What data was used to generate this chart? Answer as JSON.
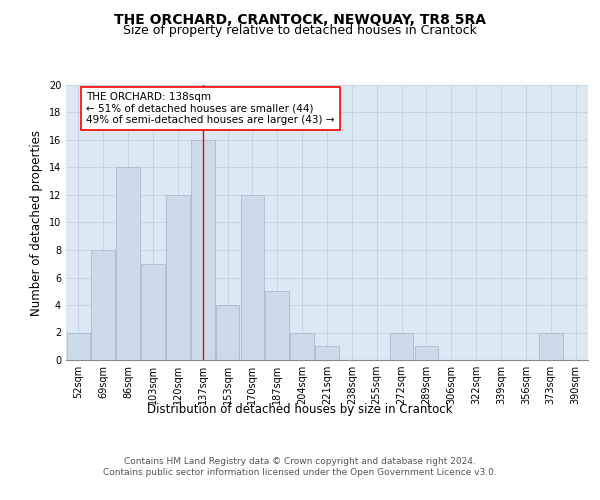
{
  "title": "THE ORCHARD, CRANTOCK, NEWQUAY, TR8 5RA",
  "subtitle": "Size of property relative to detached houses in Crantock",
  "xlabel": "Distribution of detached houses by size in Crantock",
  "ylabel": "Number of detached properties",
  "categories": [
    "52sqm",
    "69sqm",
    "86sqm",
    "103sqm",
    "120sqm",
    "137sqm",
    "153sqm",
    "170sqm",
    "187sqm",
    "204sqm",
    "221sqm",
    "238sqm",
    "255sqm",
    "272sqm",
    "289sqm",
    "306sqm",
    "322sqm",
    "339sqm",
    "356sqm",
    "373sqm",
    "390sqm"
  ],
  "values": [
    2,
    8,
    14,
    7,
    12,
    16,
    4,
    12,
    5,
    2,
    1,
    0,
    0,
    2,
    1,
    0,
    0,
    0,
    0,
    2,
    0
  ],
  "bar_color": "#cddaea",
  "bar_edge_color": "#aabcce",
  "grid_color": "#c8d4e4",
  "background_color": "#dce8f4",
  "annotation_text": "THE ORCHARD: 138sqm\n← 51% of detached houses are smaller (44)\n49% of semi-detached houses are larger (43) →",
  "annotation_box_color": "white",
  "annotation_box_edge_color": "red",
  "vline_x_index": 5,
  "vline_color": "red",
  "ylim": [
    0,
    20
  ],
  "yticks": [
    0,
    2,
    4,
    6,
    8,
    10,
    12,
    14,
    16,
    18,
    20
  ],
  "footer_text": "Contains HM Land Registry data © Crown copyright and database right 2024.\nContains public sector information licensed under the Open Government Licence v3.0.",
  "title_fontsize": 10,
  "subtitle_fontsize": 9,
  "axis_label_fontsize": 8.5,
  "tick_fontsize": 7,
  "annotation_fontsize": 7.5,
  "footer_fontsize": 6.5
}
